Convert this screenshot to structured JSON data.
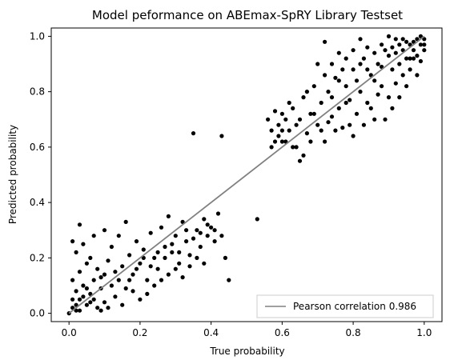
{
  "chart_data": {
    "type": "scatter",
    "title": "Model peformance on ABEmax-SpRY Library Testset",
    "xlabel": "True probability",
    "ylabel": "Predicted probability",
    "xlim": [
      -0.05,
      1.05
    ],
    "ylim": [
      -0.03,
      1.03
    ],
    "xticks": [
      0.0,
      0.2,
      0.4,
      0.6,
      0.8,
      1.0
    ],
    "xtick_labels": [
      "0.0",
      "0.2",
      "0.4",
      "0.6",
      "0.8",
      "1.0"
    ],
    "yticks": [
      0.0,
      0.2,
      0.4,
      0.6,
      0.8,
      1.0
    ],
    "ytick_labels": [
      "0.0",
      "0.2",
      "0.4",
      "0.6",
      "0.8",
      "1.0"
    ],
    "grid": false,
    "legend": {
      "placement": "lower-right",
      "entries": [
        {
          "label": "Pearson correlation 0.986",
          "color": "#808080",
          "marker": "line"
        }
      ]
    },
    "series": [
      {
        "type": "scatter",
        "color": "#000000",
        "points": [
          [
            0.0,
            0.0
          ],
          [
            0.01,
            0.02
          ],
          [
            0.02,
            0.01
          ],
          [
            0.03,
            0.05
          ],
          [
            0.02,
            0.08
          ],
          [
            0.05,
            0.03
          ],
          [
            0.04,
            0.1
          ],
          [
            0.06,
            0.07
          ],
          [
            0.08,
            0.02
          ],
          [
            0.01,
            0.12
          ],
          [
            0.03,
            0.15
          ],
          [
            0.07,
            0.12
          ],
          [
            0.09,
            0.09
          ],
          [
            0.1,
            0.04
          ],
          [
            0.12,
            0.1
          ],
          [
            0.05,
            0.18
          ],
          [
            0.02,
            0.22
          ],
          [
            0.01,
            0.26
          ],
          [
            0.04,
            0.25
          ],
          [
            0.06,
            0.2
          ],
          [
            0.08,
            0.16
          ],
          [
            0.1,
            0.14
          ],
          [
            0.11,
            0.19
          ],
          [
            0.13,
            0.06
          ],
          [
            0.14,
            0.12
          ],
          [
            0.15,
            0.17
          ],
          [
            0.16,
            0.09
          ],
          [
            0.17,
            0.21
          ],
          [
            0.18,
            0.14
          ],
          [
            0.19,
            0.26
          ],
          [
            0.2,
            0.18
          ],
          [
            0.21,
            0.23
          ],
          [
            0.22,
            0.12
          ],
          [
            0.23,
            0.29
          ],
          [
            0.24,
            0.2
          ],
          [
            0.25,
            0.16
          ],
          [
            0.26,
            0.31
          ],
          [
            0.27,
            0.24
          ],
          [
            0.28,
            0.35
          ],
          [
            0.29,
            0.22
          ],
          [
            0.3,
            0.28
          ],
          [
            0.31,
            0.18
          ],
          [
            0.32,
            0.33
          ],
          [
            0.33,
            0.26
          ],
          [
            0.34,
            0.21
          ],
          [
            0.36,
            0.3
          ],
          [
            0.37,
            0.24
          ],
          [
            0.38,
            0.34
          ],
          [
            0.39,
            0.28
          ],
          [
            0.4,
            0.31
          ],
          [
            0.41,
            0.26
          ],
          [
            0.42,
            0.36
          ],
          [
            0.12,
            0.24
          ],
          [
            0.14,
            0.28
          ],
          [
            0.16,
            0.33
          ],
          [
            0.1,
            0.3
          ],
          [
            0.07,
            0.28
          ],
          [
            0.03,
            0.32
          ],
          [
            0.18,
            0.08
          ],
          [
            0.2,
            0.05
          ],
          [
            0.22,
            0.07
          ],
          [
            0.24,
            0.1
          ],
          [
            0.26,
            0.12
          ],
          [
            0.28,
            0.14
          ],
          [
            0.3,
            0.16
          ],
          [
            0.32,
            0.13
          ],
          [
            0.34,
            0.17
          ],
          [
            0.36,
            0.2
          ],
          [
            0.38,
            0.18
          ],
          [
            0.15,
            0.03
          ],
          [
            0.11,
            0.02
          ],
          [
            0.09,
            0.01
          ],
          [
            0.06,
            0.04
          ],
          [
            0.04,
            0.06
          ],
          [
            0.02,
            0.03
          ],
          [
            0.01,
            0.05
          ],
          [
            0.03,
            0.01
          ],
          [
            0.05,
            0.09
          ],
          [
            0.07,
            0.05
          ],
          [
            0.09,
            0.13
          ],
          [
            0.13,
            0.15
          ],
          [
            0.17,
            0.12
          ],
          [
            0.19,
            0.16
          ],
          [
            0.21,
            0.2
          ],
          [
            0.23,
            0.17
          ],
          [
            0.25,
            0.22
          ],
          [
            0.27,
            0.2
          ],
          [
            0.29,
            0.25
          ],
          [
            0.31,
            0.22
          ],
          [
            0.33,
            0.3
          ],
          [
            0.35,
            0.27
          ],
          [
            0.37,
            0.29
          ],
          [
            0.39,
            0.32
          ],
          [
            0.41,
            0.3
          ],
          [
            0.43,
            0.28
          ],
          [
            0.44,
            0.2
          ],
          [
            0.45,
            0.12
          ],
          [
            0.35,
            0.65
          ],
          [
            0.43,
            0.64
          ],
          [
            0.53,
            0.34
          ],
          [
            0.6,
            0.62
          ],
          [
            0.61,
            0.7
          ],
          [
            0.62,
            0.66
          ],
          [
            0.63,
            0.74
          ],
          [
            0.64,
            0.6
          ],
          [
            0.65,
            0.7
          ],
          [
            0.66,
            0.78
          ],
          [
            0.67,
            0.65
          ],
          [
            0.68,
            0.72
          ],
          [
            0.69,
            0.82
          ],
          [
            0.7,
            0.68
          ],
          [
            0.71,
            0.76
          ],
          [
            0.72,
            0.62
          ],
          [
            0.73,
            0.8
          ],
          [
            0.74,
            0.71
          ],
          [
            0.75,
            0.85
          ],
          [
            0.76,
            0.74
          ],
          [
            0.77,
            0.67
          ],
          [
            0.78,
            0.82
          ],
          [
            0.79,
            0.77
          ],
          [
            0.8,
            0.88
          ],
          [
            0.81,
            0.72
          ],
          [
            0.82,
            0.8
          ],
          [
            0.83,
            0.92
          ],
          [
            0.84,
            0.76
          ],
          [
            0.85,
            0.86
          ],
          [
            0.86,
            0.7
          ],
          [
            0.87,
            0.9
          ],
          [
            0.88,
            0.82
          ],
          [
            0.89,
            0.95
          ],
          [
            0.9,
            0.78
          ],
          [
            0.91,
            0.88
          ],
          [
            0.92,
            0.83
          ],
          [
            0.93,
            0.97
          ],
          [
            0.94,
            0.86
          ],
          [
            0.95,
            0.92
          ],
          [
            0.96,
            0.88
          ],
          [
            0.97,
            0.98
          ],
          [
            0.98,
            0.93
          ],
          [
            0.99,
            0.97
          ],
          [
            1.0,
            0.99
          ],
          [
            1.0,
            0.95
          ],
          [
            0.99,
            0.91
          ],
          [
            0.98,
            0.86
          ],
          [
            0.97,
            0.92
          ],
          [
            0.96,
            0.97
          ],
          [
            0.95,
            0.82
          ],
          [
            0.94,
            0.95
          ],
          [
            0.93,
            0.78
          ],
          [
            0.92,
            0.99
          ],
          [
            0.91,
            0.74
          ],
          [
            0.9,
            0.93
          ],
          [
            0.89,
            0.7
          ],
          [
            0.88,
            0.89
          ],
          [
            0.87,
            0.79
          ],
          [
            0.86,
            0.84
          ],
          [
            0.85,
            0.74
          ],
          [
            0.84,
            0.96
          ],
          [
            0.83,
            0.68
          ],
          [
            0.82,
            0.9
          ],
          [
            0.81,
            0.84
          ],
          [
            0.8,
            0.64
          ],
          [
            0.79,
            0.68
          ],
          [
            0.78,
            0.92
          ],
          [
            0.77,
            0.88
          ],
          [
            0.76,
            0.94
          ],
          [
            0.75,
            0.66
          ],
          [
            0.74,
            0.78
          ],
          [
            0.73,
            0.69
          ],
          [
            0.72,
            0.86
          ],
          [
            0.71,
            0.66
          ],
          [
            0.7,
            0.9
          ],
          [
            0.69,
            0.72
          ],
          [
            0.68,
            0.62
          ],
          [
            0.67,
            0.8
          ],
          [
            0.66,
            0.57
          ],
          [
            0.65,
            0.55
          ],
          [
            0.64,
            0.68
          ],
          [
            0.63,
            0.6
          ],
          [
            0.62,
            0.76
          ],
          [
            0.61,
            0.62
          ],
          [
            0.6,
            0.72
          ],
          [
            0.59,
            0.68
          ],
          [
            0.58,
            0.62
          ],
          [
            0.57,
            0.66
          ],
          [
            0.56,
            0.7
          ],
          [
            0.57,
            0.6
          ],
          [
            0.58,
            0.73
          ],
          [
            0.59,
            0.64
          ],
          [
            0.6,
            0.66
          ],
          [
            0.72,
            0.98
          ],
          [
            0.74,
            0.9
          ],
          [
            0.76,
            0.84
          ],
          [
            0.78,
            0.76
          ],
          [
            0.8,
            0.95
          ],
          [
            0.82,
            0.99
          ],
          [
            0.84,
            0.88
          ],
          [
            0.86,
            0.94
          ],
          [
            0.88,
            0.97
          ],
          [
            0.9,
            1.0
          ],
          [
            0.92,
            0.94
          ],
          [
            0.94,
            0.99
          ],
          [
            0.96,
            0.92
          ],
          [
            0.98,
            0.99
          ],
          [
            1.0,
            0.97
          ],
          [
            0.99,
            1.0
          ],
          [
            0.97,
            0.95
          ],
          [
            0.95,
            0.98
          ],
          [
            0.93,
            0.9
          ],
          [
            0.91,
            0.96
          ]
        ]
      },
      {
        "type": "line",
        "name": "Pearson correlation 0.986",
        "color": "#808080",
        "points": [
          [
            0.0,
            0.0
          ],
          [
            1.0,
            1.0
          ]
        ]
      }
    ]
  }
}
